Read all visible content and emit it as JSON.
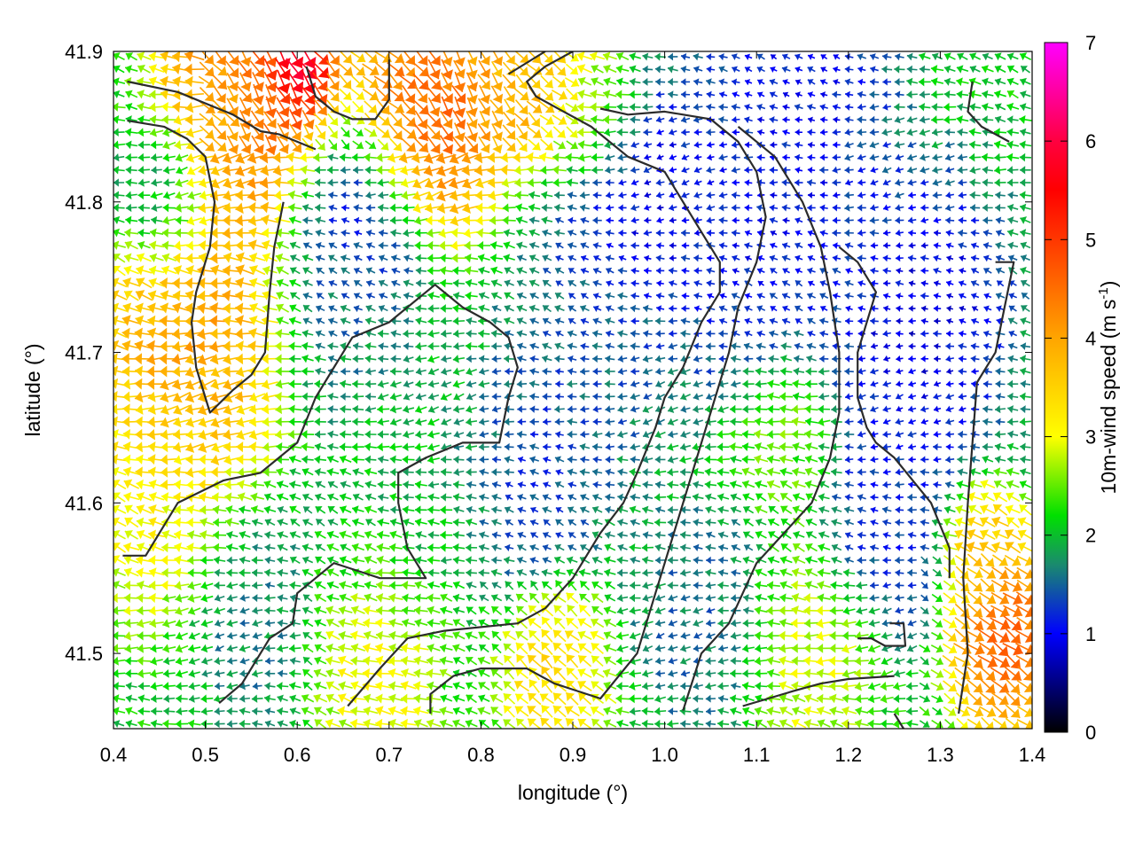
{
  "chart_data": {
    "type": "vector-field",
    "xlabel": "longitude (°)",
    "ylabel": "latitude (°)",
    "xlim": [
      0.4,
      1.4
    ],
    "ylim": [
      41.45,
      41.9
    ],
    "xticks": [
      {
        "value": 0.4,
        "label": "0.4"
      },
      {
        "value": 0.5,
        "label": "0.5"
      },
      {
        "value": 0.6,
        "label": "0.6"
      },
      {
        "value": 0.7,
        "label": "0.7"
      },
      {
        "value": 0.8,
        "label": "0.8"
      },
      {
        "value": 0.9,
        "label": "0.9"
      },
      {
        "value": 1.0,
        "label": "1.0"
      },
      {
        "value": 1.1,
        "label": "1.1"
      },
      {
        "value": 1.2,
        "label": "1.2"
      },
      {
        "value": 1.3,
        "label": "1.3"
      },
      {
        "value": 1.4,
        "label": "1.4"
      }
    ],
    "yticks": [
      {
        "value": 41.5,
        "label": "41.5"
      },
      {
        "value": 41.6,
        "label": "41.6"
      },
      {
        "value": 41.7,
        "label": "41.7"
      },
      {
        "value": 41.8,
        "label": "41.8"
      },
      {
        "value": 41.9,
        "label": "41.9"
      }
    ],
    "colorbar": {
      "label_main": "10m-wind speed (m s",
      "label_sup": "-1",
      "label_close": ")",
      "range": [
        0,
        7
      ],
      "ticks": [
        {
          "value": 0,
          "label": "0"
        },
        {
          "value": 1,
          "label": "1"
        },
        {
          "value": 2,
          "label": "2"
        },
        {
          "value": 3,
          "label": "3"
        },
        {
          "value": 4,
          "label": "4"
        },
        {
          "value": 5,
          "label": "5"
        },
        {
          "value": 6,
          "label": "6"
        },
        {
          "value": 7,
          "label": "7"
        }
      ],
      "stops": [
        {
          "value": 0,
          "color": "#000000"
        },
        {
          "value": 1,
          "color": "#0000ff"
        },
        {
          "value": 1.7,
          "color": "#1a8a6e"
        },
        {
          "value": 2.2,
          "color": "#00e000"
        },
        {
          "value": 3,
          "color": "#ffff00"
        },
        {
          "value": 4,
          "color": "#ffa500"
        },
        {
          "value": 5.5,
          "color": "#ff0000"
        },
        {
          "value": 6,
          "color": "#ff0040"
        },
        {
          "value": 7,
          "color": "#ff00ff"
        }
      ]
    },
    "speed_regions": [
      {
        "lon": 0.48,
        "lat": 41.71,
        "speed": 4.2,
        "radius": 0.09
      },
      {
        "lon": 0.45,
        "lat": 41.6,
        "speed": 3.1,
        "radius": 0.07
      },
      {
        "lon": 0.55,
        "lat": 41.88,
        "speed": 4.8,
        "radius": 0.08
      },
      {
        "lon": 0.6,
        "lat": 41.89,
        "speed": 6.8,
        "radius": 0.03
      },
      {
        "lon": 0.74,
        "lat": 41.86,
        "speed": 4.8,
        "radius": 0.07
      },
      {
        "lon": 0.85,
        "lat": 41.88,
        "speed": 4.0,
        "radius": 0.05
      },
      {
        "lon": 0.92,
        "lat": 41.86,
        "speed": 3.0,
        "radius": 0.05
      },
      {
        "lon": 0.45,
        "lat": 41.8,
        "speed": 1.5,
        "radius": 0.05
      },
      {
        "lon": 0.67,
        "lat": 41.79,
        "speed": 0.9,
        "radius": 0.06
      },
      {
        "lon": 0.66,
        "lat": 41.73,
        "speed": 1.6,
        "radius": 0.07
      },
      {
        "lon": 0.72,
        "lat": 41.6,
        "speed": 2.0,
        "radius": 0.1
      },
      {
        "lon": 0.85,
        "lat": 41.62,
        "speed": 1.2,
        "radius": 0.07
      },
      {
        "lon": 0.93,
        "lat": 41.72,
        "speed": 1.4,
        "radius": 0.08
      },
      {
        "lon": 0.97,
        "lat": 41.8,
        "speed": 0.8,
        "radius": 0.07
      },
      {
        "lon": 1.1,
        "lat": 41.78,
        "speed": 1.0,
        "radius": 0.09
      },
      {
        "lon": 1.15,
        "lat": 41.87,
        "speed": 1.0,
        "radius": 0.08
      },
      {
        "lon": 1.28,
        "lat": 41.72,
        "speed": 0.8,
        "radius": 0.08
      },
      {
        "lon": 1.25,
        "lat": 41.6,
        "speed": 1.1,
        "radius": 0.07
      },
      {
        "lon": 1.05,
        "lat": 41.52,
        "speed": 1.5,
        "radius": 0.07
      },
      {
        "lon": 0.55,
        "lat": 41.53,
        "speed": 1.6,
        "radius": 0.06
      },
      {
        "lon": 0.69,
        "lat": 41.5,
        "speed": 3.3,
        "radius": 0.06
      },
      {
        "lon": 0.88,
        "lat": 41.49,
        "speed": 3.5,
        "radius": 0.05
      },
      {
        "lon": 1.15,
        "lat": 41.5,
        "speed": 3.0,
        "radius": 0.06
      },
      {
        "lon": 1.37,
        "lat": 41.51,
        "speed": 4.8,
        "radius": 0.05
      },
      {
        "lon": 1.34,
        "lat": 41.57,
        "speed": 3.8,
        "radius": 0.04
      },
      {
        "lon": 0.52,
        "lat": 41.86,
        "speed": 3.6,
        "radius": 0.04
      },
      {
        "lon": 1.13,
        "lat": 41.64,
        "speed": 2.6,
        "radius": 0.05
      }
    ],
    "background_speed": 2.1,
    "contours": [
      [
        [
          0.415,
          41.88
        ],
        [
          0.47,
          41.873
        ],
        [
          0.53,
          41.858
        ],
        [
          0.56,
          41.847
        ],
        [
          0.58,
          41.845
        ],
        [
          0.6,
          41.84
        ],
        [
          0.62,
          41.835
        ]
      ],
      [
        [
          0.415,
          41.854
        ],
        [
          0.455,
          41.85
        ],
        [
          0.48,
          41.842
        ],
        [
          0.5,
          41.83
        ],
        [
          0.51,
          41.8
        ],
        [
          0.505,
          41.77
        ],
        [
          0.49,
          41.74
        ],
        [
          0.485,
          41.72
        ],
        [
          0.49,
          41.69
        ],
        [
          0.505,
          41.66
        ],
        [
          0.53,
          41.675
        ],
        [
          0.55,
          41.685
        ],
        [
          0.565,
          41.7
        ],
        [
          0.57,
          41.74
        ],
        [
          0.575,
          41.77
        ],
        [
          0.585,
          41.8
        ]
      ],
      [
        [
          0.61,
          41.89
        ],
        [
          0.62,
          41.87
        ],
        [
          0.64,
          41.86
        ],
        [
          0.66,
          41.855
        ],
        [
          0.685,
          41.855
        ],
        [
          0.7,
          41.868
        ],
        [
          0.7,
          41.895
        ]
      ],
      [
        [
          0.515,
          41.467
        ],
        [
          0.54,
          41.48
        ],
        [
          0.57,
          41.51
        ],
        [
          0.595,
          41.52
        ],
        [
          0.6,
          41.54
        ],
        [
          0.64,
          41.56
        ],
        [
          0.66,
          41.556
        ],
        [
          0.69,
          41.55
        ],
        [
          0.74,
          41.55
        ],
        [
          0.72,
          41.57
        ],
        [
          0.71,
          41.6
        ],
        [
          0.71,
          41.62
        ],
        [
          0.74,
          41.63
        ],
        [
          0.78,
          41.64
        ],
        [
          0.82,
          41.64
        ],
        [
          0.83,
          41.67
        ],
        [
          0.84,
          41.69
        ],
        [
          0.83,
          41.71
        ],
        [
          0.81,
          41.72
        ],
        [
          0.78,
          41.73
        ],
        [
          0.75,
          41.745
        ],
        [
          0.72,
          41.73
        ],
        [
          0.7,
          41.72
        ],
        [
          0.66,
          41.71
        ],
        [
          0.64,
          41.69
        ],
        [
          0.62,
          41.67
        ],
        [
          0.6,
          41.64
        ],
        [
          0.56,
          41.62
        ],
        [
          0.52,
          41.615
        ],
        [
          0.47,
          41.6
        ],
        [
          0.45,
          41.58
        ],
        [
          0.435,
          41.565
        ],
        [
          0.41,
          41.565
        ]
      ],
      [
        [
          0.655,
          41.465
        ],
        [
          0.69,
          41.49
        ],
        [
          0.72,
          41.51
        ],
        [
          0.76,
          41.515
        ],
        [
          0.84,
          41.52
        ],
        [
          0.87,
          41.53
        ],
        [
          0.9,
          41.55
        ],
        [
          0.93,
          41.58
        ],
        [
          0.955,
          41.6
        ],
        [
          0.97,
          41.62
        ],
        [
          0.99,
          41.65
        ],
        [
          1.0,
          41.67
        ],
        [
          1.02,
          41.69
        ],
        [
          1.04,
          41.72
        ],
        [
          1.06,
          41.74
        ],
        [
          1.06,
          41.76
        ],
        [
          1.04,
          41.78
        ],
        [
          1.02,
          41.8
        ],
        [
          1.0,
          41.82
        ],
        [
          0.96,
          41.83
        ],
        [
          0.94,
          41.84
        ],
        [
          0.92,
          41.85
        ],
        [
          0.89,
          41.86
        ],
        [
          0.86,
          41.87
        ],
        [
          0.85,
          41.88
        ],
        [
          0.87,
          41.89
        ],
        [
          0.9,
          41.9
        ]
      ],
      [
        [
          0.745,
          41.46
        ],
        [
          0.745,
          41.473
        ],
        [
          0.77,
          41.485
        ],
        [
          0.8,
          41.49
        ],
        [
          0.85,
          41.49
        ],
        [
          0.88,
          41.48
        ],
        [
          0.93,
          41.47
        ],
        [
          0.97,
          41.5
        ],
        [
          0.99,
          41.54
        ],
        [
          1.01,
          41.58
        ],
        [
          1.03,
          41.62
        ],
        [
          1.05,
          41.66
        ],
        [
          1.07,
          41.7
        ],
        [
          1.08,
          41.73
        ],
        [
          1.1,
          41.76
        ],
        [
          1.11,
          41.79
        ],
        [
          1.1,
          41.82
        ],
        [
          1.08,
          41.84
        ],
        [
          1.05,
          41.855
        ],
        [
          1.0,
          41.86
        ],
        [
          0.96,
          41.858
        ],
        [
          0.93,
          41.862
        ]
      ],
      [
        [
          1.02,
          41.462
        ],
        [
          1.04,
          41.5
        ],
        [
          1.07,
          41.52
        ],
        [
          1.1,
          41.56
        ],
        [
          1.13,
          41.58
        ],
        [
          1.16,
          41.6
        ],
        [
          1.18,
          41.63
        ],
        [
          1.19,
          41.66
        ],
        [
          1.19,
          41.7
        ],
        [
          1.18,
          41.74
        ],
        [
          1.17,
          41.77
        ],
        [
          1.15,
          41.8
        ],
        [
          1.12,
          41.83
        ],
        [
          1.08,
          41.85
        ]
      ],
      [
        [
          1.085,
          41.465
        ],
        [
          1.14,
          41.475
        ],
        [
          1.17,
          41.48
        ],
        [
          1.2,
          41.483
        ],
        [
          1.25,
          41.485
        ]
      ],
      [
        [
          1.245,
          41.52
        ],
        [
          1.26,
          41.52
        ],
        [
          1.262,
          41.505
        ],
        [
          1.24,
          41.505
        ],
        [
          1.225,
          41.51
        ],
        [
          1.21,
          41.51
        ]
      ],
      [
        [
          1.25,
          41.46
        ],
        [
          1.26,
          41.45
        ]
      ],
      [
        [
          1.31,
          41.55
        ],
        [
          1.31,
          41.57
        ],
        [
          1.29,
          41.6
        ],
        [
          1.27,
          41.615
        ],
        [
          1.25,
          41.63
        ],
        [
          1.23,
          41.64
        ],
        [
          1.22,
          41.65
        ],
        [
          1.21,
          41.67
        ],
        [
          1.21,
          41.7
        ],
        [
          1.22,
          41.72
        ],
        [
          1.23,
          41.74
        ],
        [
          1.21,
          41.76
        ],
        [
          1.19,
          41.77
        ]
      ],
      [
        [
          1.32,
          41.46
        ],
        [
          1.33,
          41.5
        ],
        [
          1.325,
          41.55
        ],
        [
          1.33,
          41.6
        ],
        [
          1.335,
          41.64
        ],
        [
          1.34,
          41.68
        ],
        [
          1.36,
          41.7
        ],
        [
          1.37,
          41.73
        ],
        [
          1.38,
          41.76
        ],
        [
          1.36,
          41.76
        ]
      ],
      [
        [
          1.335,
          41.88
        ],
        [
          1.33,
          41.86
        ],
        [
          1.345,
          41.85
        ],
        [
          1.375,
          41.84
        ]
      ],
      [
        [
          0.83,
          41.885
        ],
        [
          0.87,
          41.9
        ]
      ]
    ]
  }
}
